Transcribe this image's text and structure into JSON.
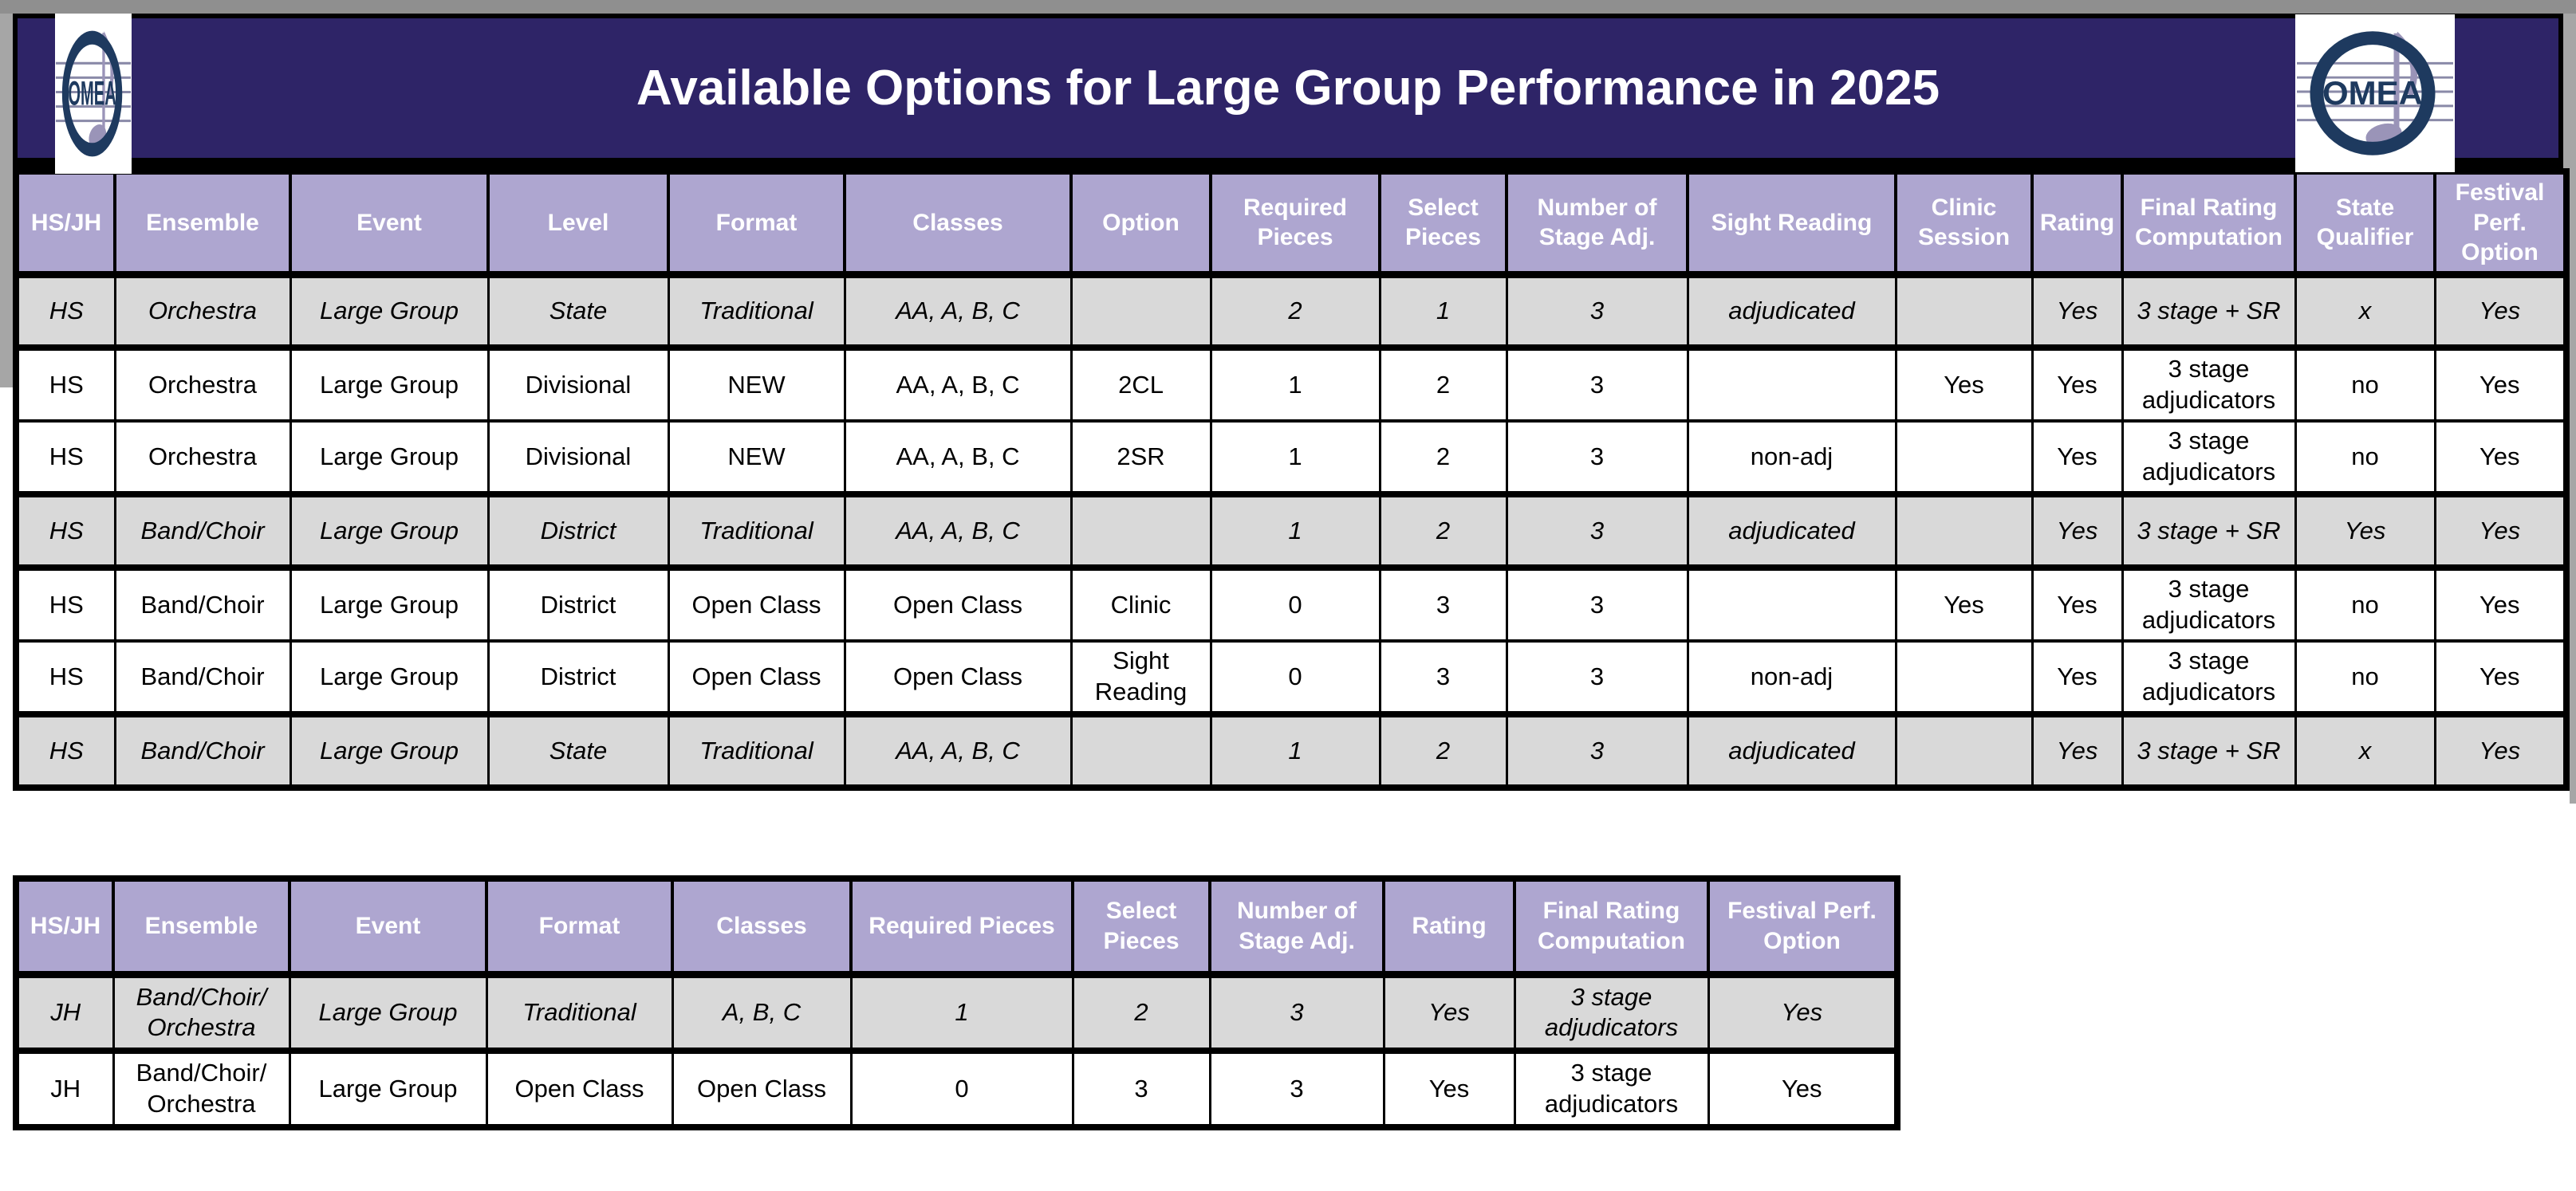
{
  "banner": {
    "title": "Available Options for Large Group Performance in 2025",
    "logo_text": "OMEA"
  },
  "colors": {
    "banner_bg": "#2E2467",
    "header_bg": "#AEA6D0",
    "shaded_row_bg": "#D9D9D9",
    "page_band_gray": "#A6A6A6",
    "page_band_dark": "#8F8F8F",
    "logo_navy": "#1E3A5F",
    "logo_gray": "#9A94B8"
  },
  "hs_table": {
    "columns": [
      "HS/JH",
      "Ensemble",
      "Event",
      "Level",
      "Format",
      "Classes",
      "Option",
      "Required Pieces",
      "Select Pieces",
      "Number of Stage Adj.",
      "Sight Reading",
      "Clinic Session",
      "Rating",
      "Final Rating Computation",
      "State Qualifier",
      "Festival Perf. Option"
    ],
    "rows": [
      {
        "variant": "shaded-italic",
        "cells": [
          "HS",
          "Orchestra",
          "Large Group",
          "State",
          "Traditional",
          "AA, A, B, C",
          "",
          "2",
          "1",
          "3",
          "adjudicated",
          "",
          "Yes",
          "3 stage + SR",
          "x",
          "Yes"
        ]
      },
      {
        "variant": "normal",
        "cells": [
          "HS",
          "Orchestra",
          "Large Group",
          "Divisional",
          "NEW",
          "AA, A, B, C",
          "2CL",
          "1",
          "2",
          "3",
          "",
          "Yes",
          "Yes",
          "3 stage adjudicators",
          "no",
          "Yes"
        ]
      },
      {
        "variant": "normal",
        "cells": [
          "HS",
          "Orchestra",
          "Large Group",
          "Divisional",
          "NEW",
          "AA, A, B, C",
          "2SR",
          "1",
          "2",
          "3",
          "non-adj",
          "",
          "Yes",
          "3 stage adjudicators",
          "no",
          "Yes"
        ]
      },
      {
        "variant": "shaded-italic",
        "cells": [
          "HS",
          "Band/Choir",
          "Large Group",
          "District",
          "Traditional",
          "AA, A, B, C",
          "",
          "1",
          "2",
          "3",
          "adjudicated",
          "",
          "Yes",
          "3 stage + SR",
          "Yes",
          "Yes"
        ]
      },
      {
        "variant": "normal",
        "cells": [
          "HS",
          "Band/Choir",
          "Large Group",
          "District",
          "Open Class",
          "Open Class",
          "Clinic",
          "0",
          "3",
          "3",
          "",
          "Yes",
          "Yes",
          "3 stage adjudicators",
          "no",
          "Yes"
        ]
      },
      {
        "variant": "normal",
        "cells": [
          "HS",
          "Band/Choir",
          "Large Group",
          "District",
          "Open Class",
          "Open Class",
          "Sight Reading",
          "0",
          "3",
          "3",
          "non-adj",
          "",
          "Yes",
          "3 stage adjudicators",
          "no",
          "Yes"
        ]
      },
      {
        "variant": "shaded-italic",
        "cells": [
          "HS",
          "Band/Choir",
          "Large Group",
          "State",
          "Traditional",
          "AA, A, B, C",
          "",
          "1",
          "2",
          "3",
          "adjudicated",
          "",
          "Yes",
          "3 stage + SR",
          "x",
          "Yes"
        ]
      }
    ]
  },
  "jh_table": {
    "columns": [
      "HS/JH",
      "Ensemble",
      "Event",
      "Format",
      "Classes",
      "Required Pieces",
      "Select Pieces",
      "Number of Stage Adj.",
      "Rating",
      "Final Rating Computation",
      "Festival Perf. Option"
    ],
    "rows": [
      {
        "variant": "shaded-italic",
        "cells": [
          "JH",
          "Band/Choir/ Orchestra",
          "Large Group",
          "Traditional",
          "A, B, C",
          "1",
          "2",
          "3",
          "Yes",
          "3 stage adjudicators",
          "Yes"
        ]
      },
      {
        "variant": "normal",
        "cells": [
          "JH",
          "Band/Choir/ Orchestra",
          "Large Group",
          "Open Class",
          "Open Class",
          "0",
          "3",
          "3",
          "Yes",
          "3 stage adjudicators",
          "Yes"
        ]
      }
    ]
  }
}
